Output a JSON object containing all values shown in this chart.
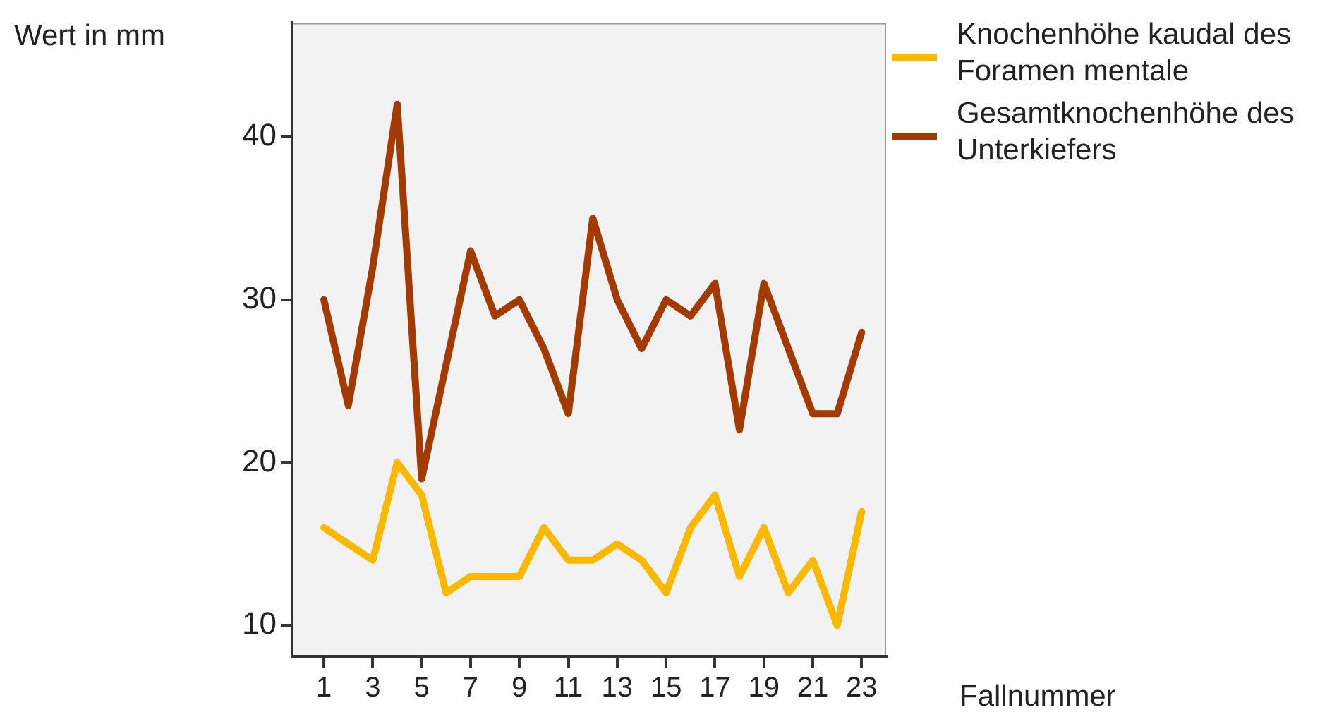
{
  "chart_data": {
    "type": "line",
    "ylabel": "Wert in mm",
    "xlabel": "Fallnummer",
    "x": [
      1,
      2,
      3,
      4,
      5,
      6,
      7,
      8,
      9,
      10,
      11,
      12,
      13,
      14,
      15,
      16,
      17,
      18,
      19,
      20,
      21,
      22,
      23
    ],
    "series": [
      {
        "name": "Knochenhöhe kaudal des Foramen mentale",
        "color": "#fbb800",
        "values": [
          16,
          15,
          14,
          20,
          18,
          12,
          13,
          13,
          13,
          16,
          14,
          14,
          15,
          14,
          12,
          16,
          18,
          13,
          16,
          12,
          14,
          10,
          17
        ]
      },
      {
        "name": "Gesamtknochenhöhe des Unterkiefers",
        "color": "#a33a00",
        "values": [
          30,
          23.5,
          32,
          42,
          19,
          26,
          33,
          29,
          30,
          27,
          23,
          35,
          30,
          27,
          30,
          29,
          31,
          22,
          31,
          27,
          23,
          23,
          28
        ]
      }
    ],
    "xlim": [
      -0.3,
      24
    ],
    "xticks": [
      1,
      3,
      5,
      7,
      9,
      11,
      13,
      15,
      17,
      19,
      21,
      23
    ],
    "ylim": [
      8.1,
      47
    ],
    "yticks": [
      10,
      20,
      30,
      40
    ],
    "grid": false,
    "legend": "right",
    "marker": "none",
    "line_style": "solid"
  }
}
